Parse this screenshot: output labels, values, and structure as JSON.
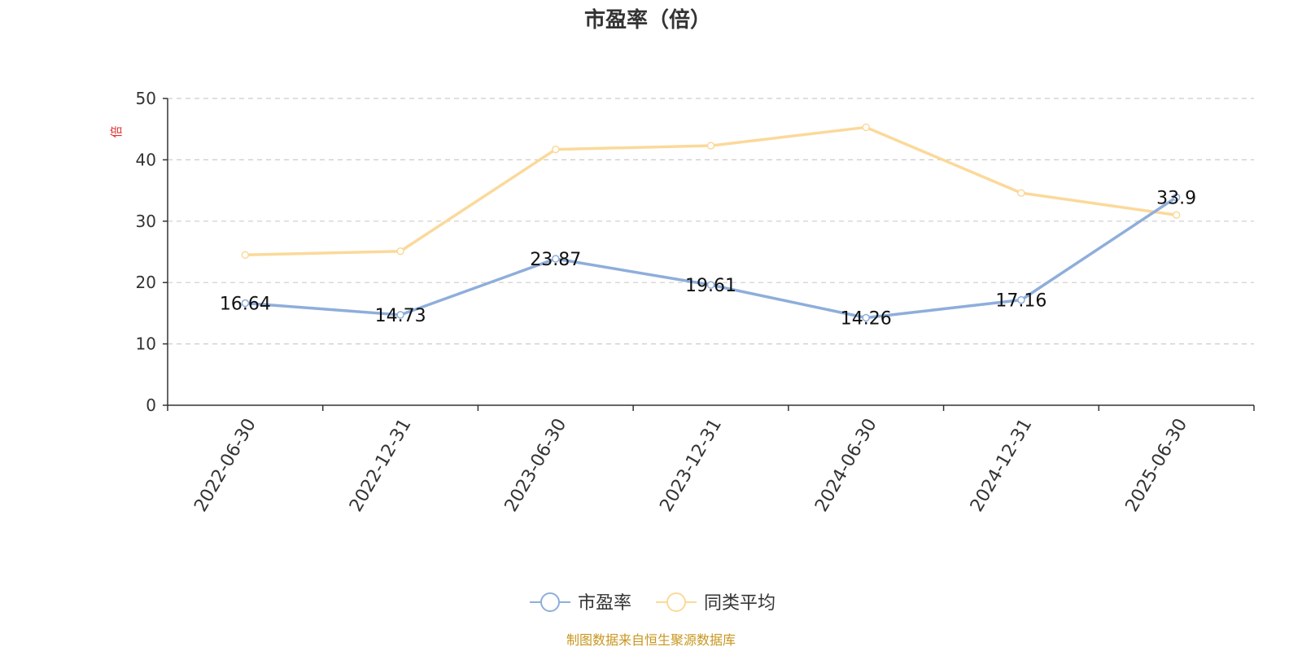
{
  "chart_data": {
    "type": "line",
    "title": "市盈率（倍）",
    "ylabel": "倍",
    "xlabel": "",
    "x": [
      "2022-06-30",
      "2022-12-31",
      "2023-06-30",
      "2023-12-31",
      "2024-06-30",
      "2024-12-31",
      "2025-06-30"
    ],
    "ylim": [
      0,
      50
    ],
    "yticks": [
      0,
      10,
      20,
      30,
      40,
      50
    ],
    "grid": true,
    "legend_position": "bottom",
    "series": [
      {
        "name": "市盈率",
        "color": "#8eaedb",
        "values": [
          16.64,
          14.73,
          23.87,
          19.61,
          14.26,
          17.16,
          33.9
        ],
        "labels": [
          "16.64",
          "14.73",
          "23.87",
          "19.61",
          "14.26",
          "17.16",
          "33.9"
        ]
      },
      {
        "name": "同类平均",
        "color": "#fbd99a",
        "values": [
          24.5,
          25.1,
          41.7,
          42.3,
          45.3,
          34.6,
          31.0
        ]
      }
    ]
  },
  "footer": {
    "source": "制图数据来自恒生聚源数据库"
  }
}
